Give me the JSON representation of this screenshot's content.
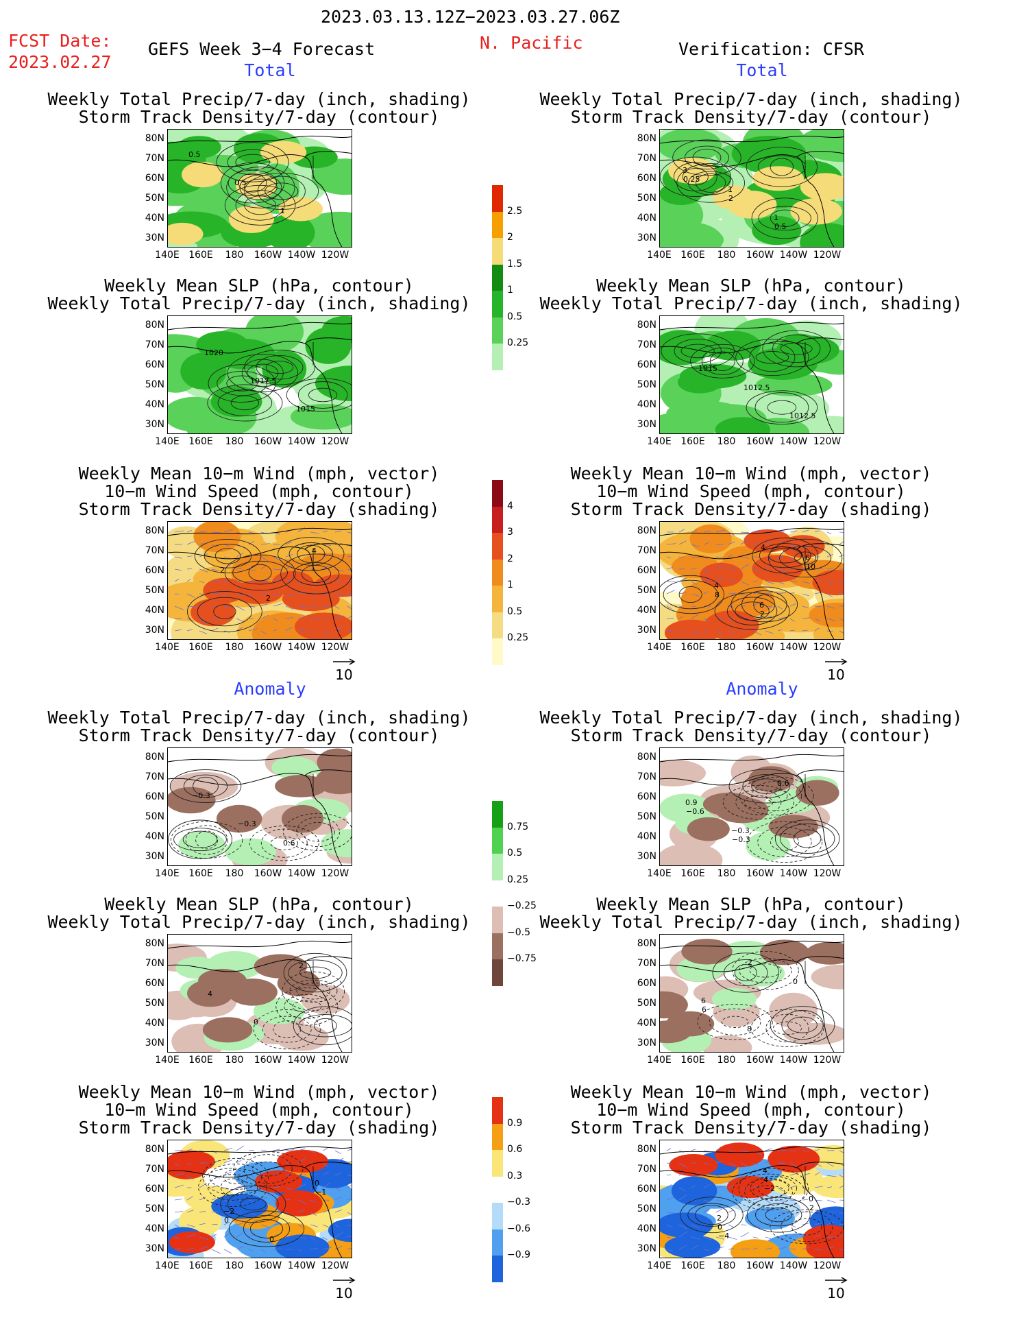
{
  "header": {
    "period": "2023.03.13.12Z−2023.03.27.06Z",
    "fcst_label": "FCST Date:",
    "fcst_date": "2023.02.27",
    "forecast_title": "GEFS Week 3−4 Forecast",
    "region": "N. Pacific",
    "verification": "Verification: CFSR"
  },
  "sections": {
    "total": "Total",
    "anomaly": "Anomaly"
  },
  "axes": {
    "lat_ticks": [
      "80N",
      "70N",
      "60N",
      "50N",
      "40N",
      "30N"
    ],
    "lon_ticks": [
      "140E",
      "160E",
      "180",
      "160W",
      "140W",
      "120W"
    ]
  },
  "vector_ref": "10",
  "colors": {
    "title_red": "#e8201e",
    "title_blue": "#2a3cff"
  },
  "chart_data": [
    {
      "type": "heatmap",
      "column": "forecast",
      "group": "total",
      "title": "Weekly Total Precip/7-day (inch, shading)",
      "subtitle": "Storm Track Density/7-day (contour)",
      "contour_labels": [
        "0.5",
        "0.5",
        "1"
      ]
    },
    {
      "type": "heatmap",
      "column": "forecast",
      "group": "total",
      "title": "Weekly Mean SLP (hPa, contour)",
      "subtitle": "Weekly Total Precip/7-day (inch, shading)",
      "contour_labels": [
        "1020",
        "1017.5",
        "1015"
      ]
    },
    {
      "type": "heatmap",
      "column": "forecast",
      "group": "total",
      "title": "Weekly Mean 10−m Wind (mph, vector)",
      "subtitle": "10−m Wind Speed (mph, contour)",
      "subtitle2": "Storm Track Density/7-day (shading)",
      "contour_labels": [
        "2",
        "2",
        "4"
      ]
    },
    {
      "type": "heatmap",
      "column": "verification",
      "group": "total",
      "title": "Weekly Total Precip/7-day (inch, shading)",
      "subtitle": "Storm Track Density/7-day (contour)",
      "contour_labels": [
        "1",
        "1",
        "3",
        "2",
        "0.5",
        "0.25"
      ]
    },
    {
      "type": "heatmap",
      "column": "verification",
      "group": "total",
      "title": "Weekly Mean SLP (hPa, contour)",
      "subtitle": "Weekly Total Precip/7-day (inch, shading)",
      "contour_labels": [
        "1012.5",
        "1012.5",
        "1015"
      ]
    },
    {
      "type": "heatmap",
      "column": "verification",
      "group": "total",
      "title": "Weekly Mean 10−m Wind (mph, vector)",
      "subtitle": "10−m Wind Speed (mph, contour)",
      "subtitle2": "Storm Track Density/7-day (shading)",
      "contour_labels": [
        "6",
        "6",
        "4",
        "2",
        "10",
        "8",
        "4"
      ]
    },
    {
      "type": "heatmap",
      "column": "forecast",
      "group": "anomaly",
      "title": "Weekly Total Precip/7-day (inch, shading)",
      "subtitle": "Storm Track Density/7-day (contour)",
      "contour_labels": [
        "0.6",
        "−0.3",
        "−0.3"
      ]
    },
    {
      "type": "heatmap",
      "column": "forecast",
      "group": "anomaly",
      "title": "Weekly Mean SLP (hPa, contour)",
      "subtitle": "Weekly Total Precip/7-day (inch, shading)",
      "contour_labels": [
        "2",
        "4",
        "0"
      ]
    },
    {
      "type": "heatmap",
      "column": "forecast",
      "group": "anomaly",
      "title": "Weekly Mean 10−m Wind (mph, vector)",
      "subtitle": "10−m Wind Speed (mph, contour)",
      "subtitle2": "Storm Track Density/7-day (shading)",
      "contour_labels": [
        "0",
        "−2",
        "0",
        "−1",
        "0"
      ]
    },
    {
      "type": "heatmap",
      "column": "verification",
      "group": "anomaly",
      "title": "Weekly Total Precip/7-day (inch, shading)",
      "subtitle": "Storm Track Density/7-day (contour)",
      "contour_labels": [
        "0.9",
        "−0.3",
        "0.6",
        "−0.6",
        "−0.3"
      ]
    },
    {
      "type": "heatmap",
      "column": "verification",
      "group": "anomaly",
      "title": "Weekly Mean SLP (hPa, contour)",
      "subtitle": "Weekly Total Precip/7-day (inch, shading)",
      "contour_labels": [
        "6",
        "8",
        "0",
        "6",
        "2"
      ]
    },
    {
      "type": "heatmap",
      "column": "verification",
      "group": "anomaly",
      "title": "Weekly Mean 10−m Wind (mph, vector)",
      "subtitle": "10−m Wind Speed (mph, contour)",
      "subtitle2": "Storm Track Density/7-day (shading)",
      "contour_labels": [
        "2",
        "4",
        "0",
        "0",
        "4",
        "2",
        "−4",
        "−2"
      ]
    }
  ],
  "colorbars": [
    {
      "name": "precip_total",
      "levels": [
        "0.25",
        "0.5",
        "1",
        "1.5",
        "2",
        "2.5"
      ],
      "colors": [
        "#b4f0b4",
        "#5ad25a",
        "#28b428",
        "#148c14",
        "#f5dc78",
        "#f5a000",
        "#e02800"
      ]
    },
    {
      "name": "storm_track_total",
      "levels": [
        "0.25",
        "0.5",
        "1",
        "2",
        "3",
        "4"
      ],
      "colors": [
        "#fffac8",
        "#f5dc82",
        "#f5b43c",
        "#f08c1e",
        "#e6501e",
        "#c81e1e",
        "#8c0a14"
      ]
    },
    {
      "name": "precip_anomaly",
      "levels": [
        "−0.75",
        "−0.5",
        "−0.25",
        "0.25",
        "0.5",
        "0.75"
      ],
      "colors": [
        "#6e463c",
        "#9c7060",
        "#dcbeb4",
        "#ffffff",
        "#b4f0b4",
        "#50d250",
        "#16a016"
      ]
    },
    {
      "name": "storm_track_anomaly",
      "levels": [
        "−0.9",
        "−0.6",
        "−0.3",
        "0.3",
        "0.6",
        "0.9"
      ],
      "colors": [
        "#1e64dc",
        "#50a0f0",
        "#b4dcf8",
        "#ffffff",
        "#fae678",
        "#f5a014",
        "#e63214"
      ]
    }
  ]
}
